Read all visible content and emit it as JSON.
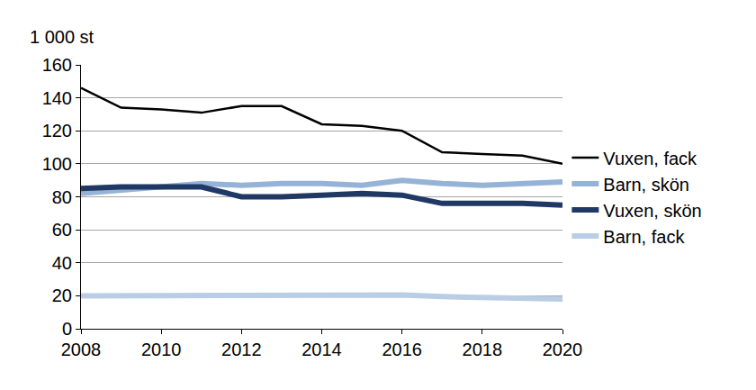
{
  "chart_data": {
    "type": "line",
    "ylabel": "1 000 st",
    "x": [
      2008,
      2009,
      2010,
      2011,
      2012,
      2013,
      2014,
      2015,
      2016,
      2017,
      2018,
      2019,
      2020
    ],
    "series": [
      {
        "name": "Vuxen, fack",
        "color": "#000000",
        "values": [
          146,
          134,
          133,
          131,
          135,
          135,
          124,
          123,
          120,
          107,
          106,
          105,
          100
        ]
      },
      {
        "name": "Barn, skön",
        "color": "#95b3d7",
        "values": [
          82,
          84,
          86,
          88,
          87,
          88,
          88,
          87,
          90,
          88,
          87,
          88,
          89
        ]
      },
      {
        "name": "Vuxen, skön",
        "color": "#1f3864",
        "values": [
          85,
          86,
          86,
          86,
          80,
          80,
          81,
          82,
          81,
          76,
          76,
          76,
          75
        ]
      },
      {
        "name": "Barn, fack",
        "color": "#b9cde5",
        "values": [
          20,
          20,
          20.5,
          20,
          20.5,
          20,
          20,
          20,
          20.5,
          19.5,
          19,
          18.5,
          18
        ]
      }
    ],
    "xlim": [
      2008,
      2020
    ],
    "xticks": [
      2008,
      2010,
      2012,
      2014,
      2016,
      2018,
      2020
    ],
    "ylim": [
      0,
      160
    ],
    "yticks": [
      0,
      20,
      40,
      60,
      80,
      100,
      120,
      140,
      160
    ],
    "grid": true,
    "legend": "right"
  }
}
